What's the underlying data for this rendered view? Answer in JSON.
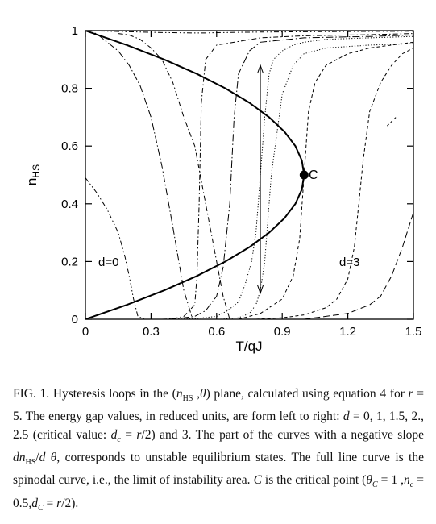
{
  "chart_data": {
    "type": "line",
    "xlabel": "T/qJ",
    "ylabel": "n",
    "ylabel_sub": "HS",
    "xlim": [
      0,
      1.5
    ],
    "ylim": [
      0,
      1
    ],
    "xticks": [
      "0",
      "0.3",
      "0.6",
      "0.9",
      "1.2",
      "1.5"
    ],
    "yticks": [
      "0",
      "0.2",
      "0.4",
      "0.6",
      "0.8",
      "1"
    ],
    "annotations": {
      "d0": "d=0",
      "d3": "d=3",
      "critical": "C"
    },
    "critical_point": {
      "x": 1.0,
      "y": 0.5
    },
    "arrow": {
      "x": 0.8,
      "from": 0.09,
      "to": 0.88
    },
    "spinodal": {
      "x": [
        0,
        0.19,
        0.36,
        0.51,
        0.64,
        0.75,
        0.84,
        0.91,
        0.96,
        0.99,
        1.0,
        0.99,
        0.96,
        0.91,
        0.84,
        0.75,
        0.64,
        0.51,
        0.36,
        0.19,
        0
      ],
      "y": [
        0,
        0.05,
        0.1,
        0.15,
        0.2,
        0.25,
        0.3,
        0.35,
        0.4,
        0.45,
        0.5,
        0.55,
        0.6,
        0.65,
        0.7,
        0.75,
        0.8,
        0.85,
        0.9,
        0.95,
        1
      ]
    },
    "series": [
      {
        "style": "dash-dot-dot",
        "x": [
          0.0,
          0.05,
          0.1,
          0.15,
          0.18,
          0.2,
          0.22,
          0.24,
          0.27
        ],
        "y": [
          0.49,
          0.44,
          0.38,
          0.3,
          0.22,
          0.15,
          0.07,
          0.01,
          0.0
        ]
      },
      {
        "style": "dash-dot-dot",
        "x": [
          0.0,
          0.1,
          0.2,
          0.3,
          0.4,
          0.5,
          0.55,
          0.6,
          0.7,
          0.8,
          1.0,
          1.2,
          1.5
        ],
        "y": [
          1.0,
          0.998,
          0.996,
          0.994,
          0.993,
          0.992,
          0.992,
          0.993,
          0.994,
          0.995,
          0.996,
          0.997,
          0.998
        ]
      },
      {
        "style": "dash-dot-long",
        "x": [
          0.0,
          0.05,
          0.1,
          0.15,
          0.2,
          0.25,
          0.3,
          0.35,
          0.4,
          0.45,
          0.49
        ],
        "y": [
          1.0,
          0.99,
          0.96,
          0.93,
          0.88,
          0.81,
          0.7,
          0.53,
          0.32,
          0.1,
          0.0
        ]
      },
      {
        "style": "dash-dot",
        "x": [
          0.15,
          0.2,
          0.25,
          0.3,
          0.35,
          0.4,
          0.45,
          0.5,
          0.55,
          0.6,
          0.63,
          0.66
        ],
        "y": [
          0.99,
          0.985,
          0.97,
          0.94,
          0.9,
          0.82,
          0.7,
          0.6,
          0.4,
          0.2,
          0.08,
          0.0
        ]
      },
      {
        "style": "dash-dot",
        "x": [
          0.35,
          0.4,
          0.45,
          0.5,
          0.51,
          0.52,
          0.53,
          0.55,
          0.6,
          0.8,
          1.0,
          1.3,
          1.5
        ],
        "y": [
          0.0,
          0.002,
          0.01,
          0.05,
          0.15,
          0.4,
          0.75,
          0.9,
          0.95,
          0.975,
          0.982,
          0.986,
          0.99
        ]
      },
      {
        "style": "dash-dot-long",
        "x": [
          0.38,
          0.45,
          0.5,
          0.55,
          0.6,
          0.63,
          0.66,
          0.68,
          0.7,
          0.75,
          0.8,
          1.0,
          1.3,
          1.5
        ],
        "y": [
          0.0,
          0.005,
          0.01,
          0.03,
          0.08,
          0.18,
          0.4,
          0.7,
          0.85,
          0.93,
          0.96,
          0.975,
          0.98,
          0.985
        ]
      },
      {
        "style": "dotted",
        "x": [
          0.4,
          0.5,
          0.6,
          0.65,
          0.7,
          0.73,
          0.76,
          0.78,
          0.79,
          0.8
        ],
        "y": [
          0.0,
          0.002,
          0.01,
          0.03,
          0.06,
          0.12,
          0.2,
          0.3,
          0.4,
          0.5
        ]
      },
      {
        "style": "dotted",
        "x": [
          0.8,
          0.82,
          0.84,
          0.86,
          0.9,
          0.95,
          1.0,
          1.1,
          1.3,
          1.5
        ],
        "y": [
          0.5,
          0.7,
          0.85,
          0.9,
          0.93,
          0.95,
          0.96,
          0.97,
          0.975,
          0.98
        ]
      },
      {
        "style": "dotted",
        "x": [
          0.62,
          0.7,
          0.75,
          0.78,
          0.8,
          0.82,
          0.85,
          0.9,
          0.95,
          1.0,
          1.1,
          1.3,
          1.5
        ],
        "y": [
          0.0,
          0.005,
          0.02,
          0.05,
          0.1,
          0.2,
          0.5,
          0.78,
          0.88,
          0.92,
          0.94,
          0.95,
          0.955
        ]
      },
      {
        "style": "dashed",
        "x": [
          0.7,
          0.8,
          0.9,
          0.95,
          0.98,
          1.0,
          1.02,
          1.05,
          1.1,
          1.2,
          1.3,
          1.5
        ],
        "y": [
          0.0,
          0.02,
          0.07,
          0.15,
          0.28,
          0.5,
          0.72,
          0.82,
          0.88,
          0.92,
          0.94,
          0.96
        ]
      },
      {
        "style": "dashed",
        "x": [
          0.78,
          0.9,
          1.0,
          1.1,
          1.15,
          1.2,
          1.23,
          1.25,
          1.27,
          1.3,
          1.35,
          1.4,
          1.45,
          1.5
        ],
        "y": [
          0.0,
          0.005,
          0.015,
          0.04,
          0.07,
          0.14,
          0.25,
          0.4,
          0.55,
          0.72,
          0.82,
          0.88,
          0.92,
          0.94
        ]
      },
      {
        "style": "long-dash",
        "x": [
          1.0,
          1.1,
          1.2,
          1.3,
          1.35,
          1.4,
          1.45,
          1.5
        ],
        "y": [
          0.0,
          0.01,
          0.02,
          0.05,
          0.08,
          0.15,
          0.25,
          0.37
        ]
      },
      {
        "style": "short-dash",
        "x": [
          1.38,
          1.42
        ],
        "y": [
          0.67,
          0.7
        ]
      }
    ]
  },
  "caption": {
    "html": "FIG. 1. Hysteresis loops in the (<i>n</i><sub>HS</sub> ,<i>θ</i>) plane, calculated using equation 4 for <i>r</i> = 5. The energy gap values, in reduced units, are form left to right: <i>d</i> = 0, 1, 1.5, 2., 2.5 (critical value: <i>d</i><sub><i>c</i></sub> = <i>r</i>/2) and 3. The part of the curves with a negative slope <i>dn</i><sub>HS</sub>/<i>d θ</i>, corresponds to unstable equilibrium states. The full line curve is the spinodal curve, i.e., the limit of instability area. <i>C</i> is the critical point (<i>θ</i><sub><i>C</i></sub> = 1 ,<i>n</i><sub><i>c</i></sub> = 0.5,<i>d</i><sub><i>C</i></sub> = <i>r</i>/2)."
  }
}
